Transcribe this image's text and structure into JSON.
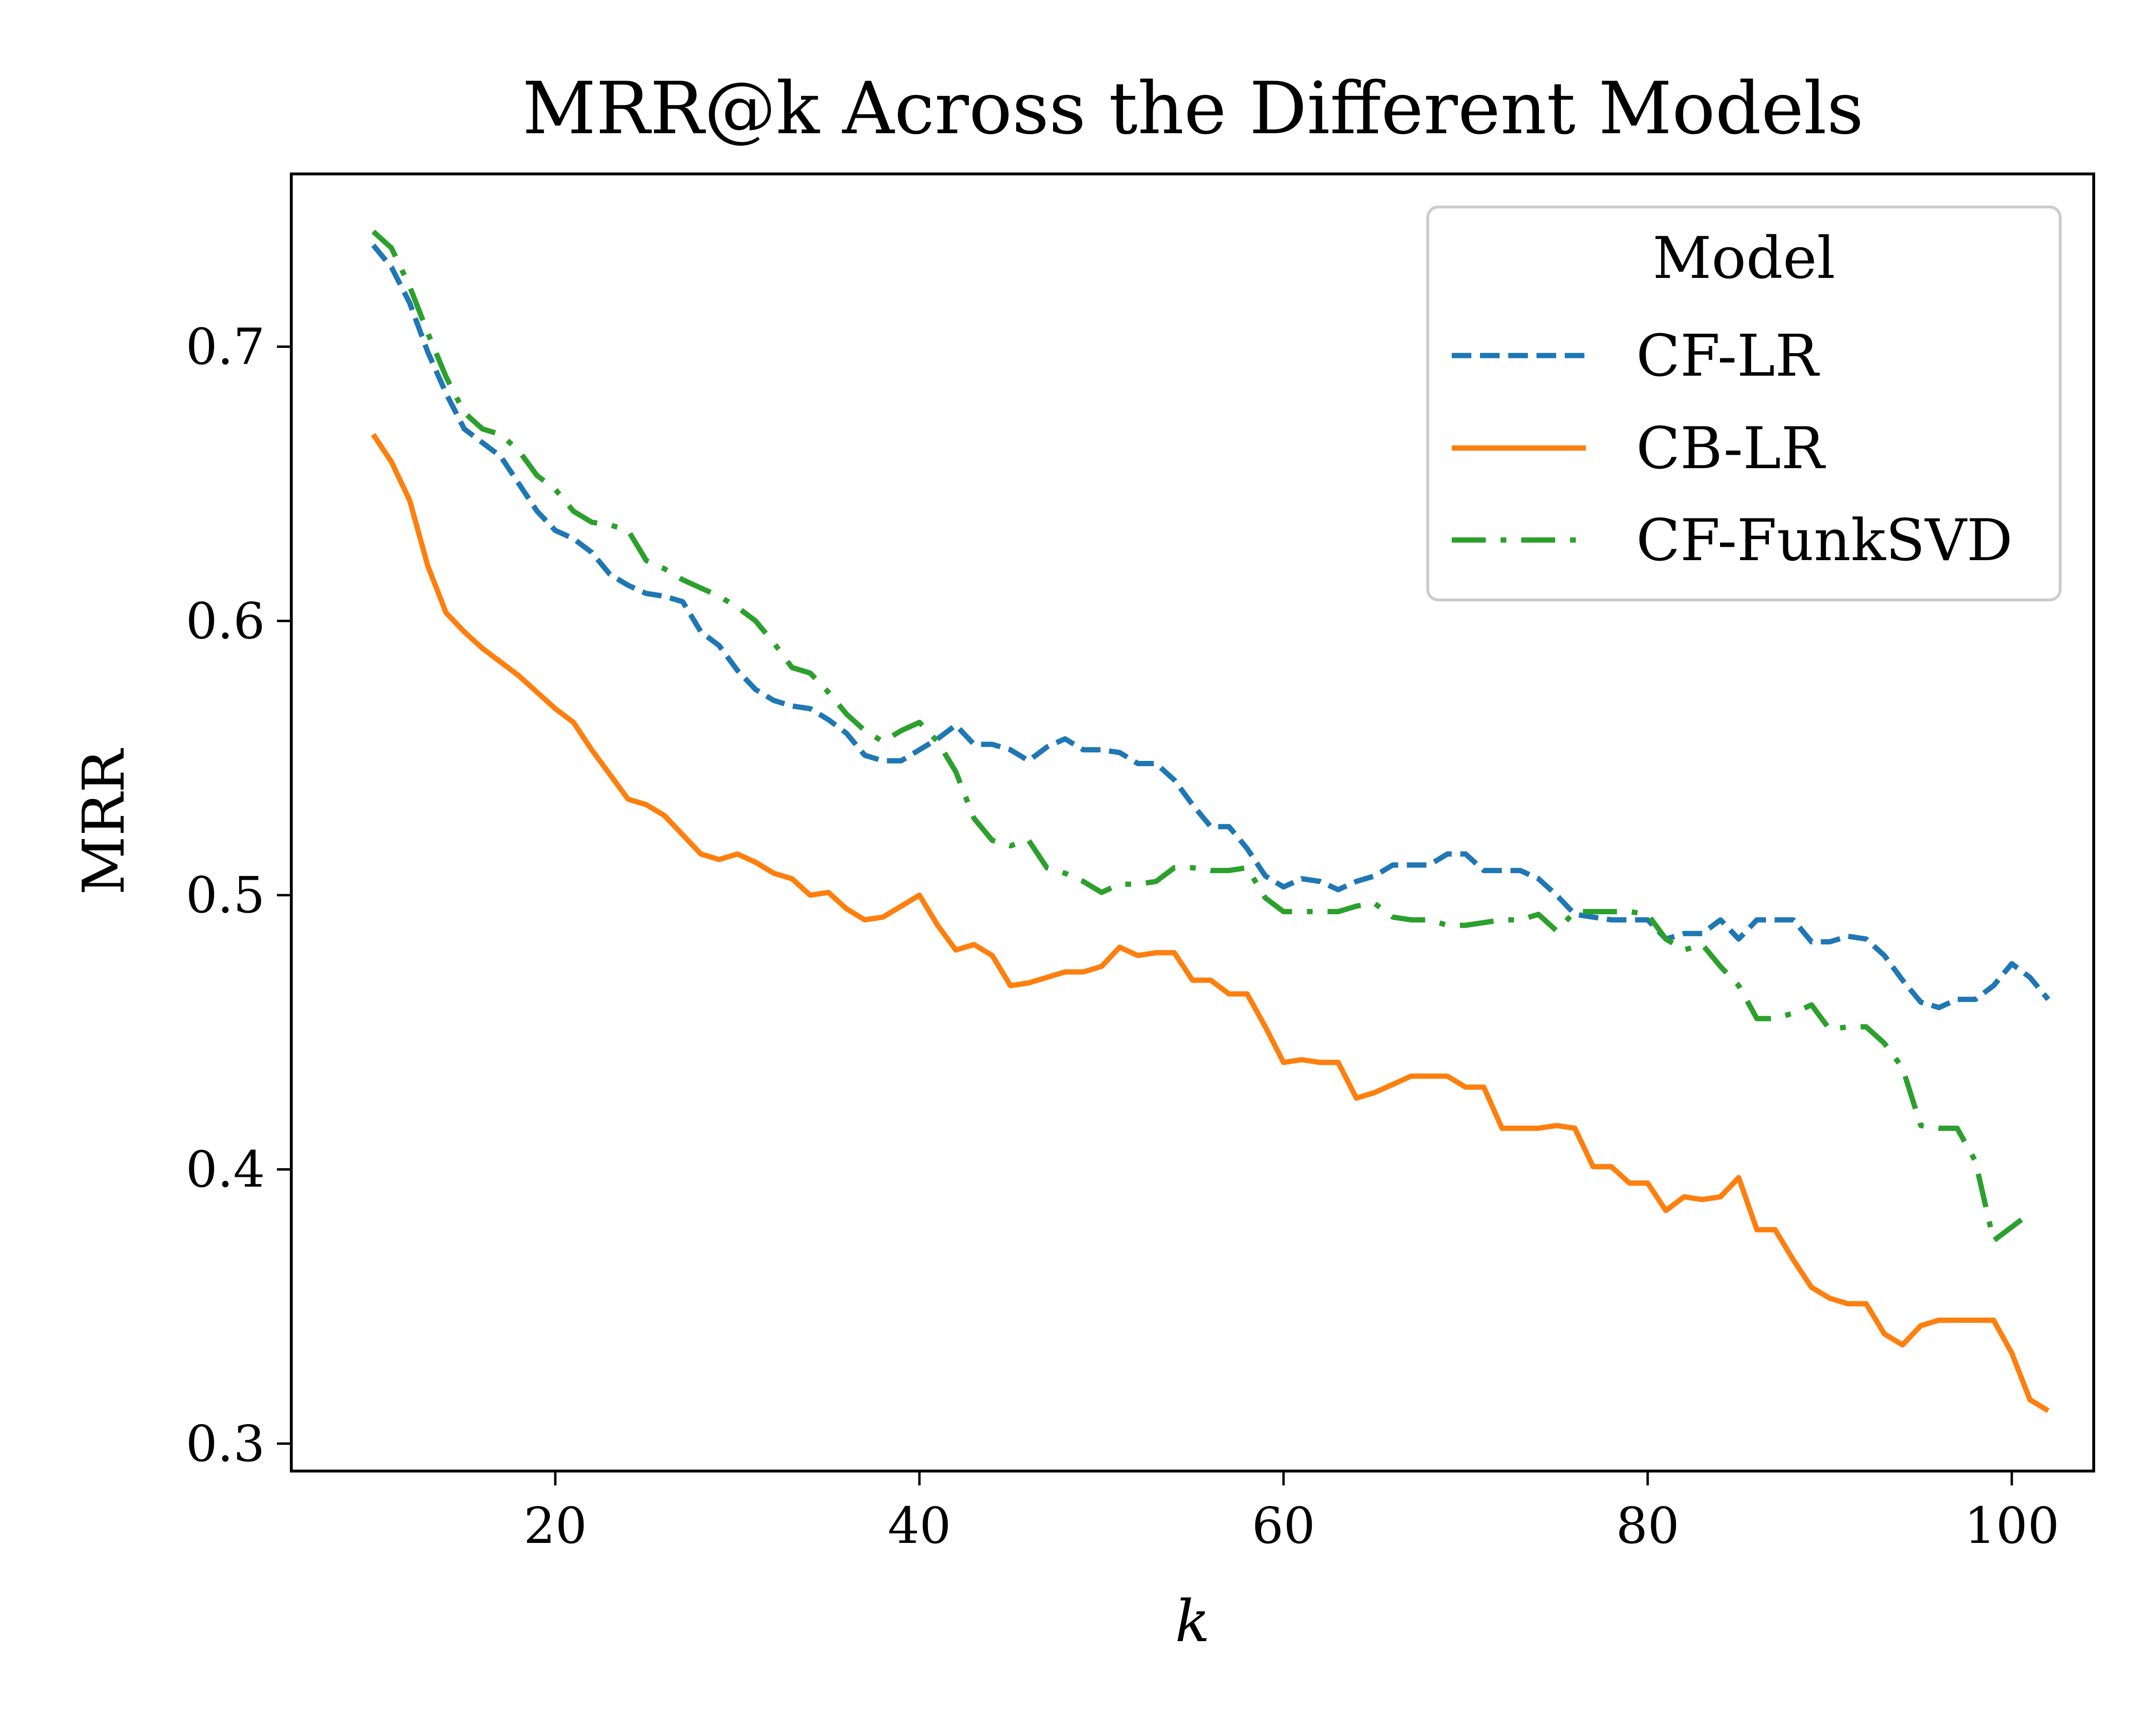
{
  "chart_data": {
    "type": "line",
    "title": "MRR@k Across the Different Models",
    "xlabel": "k",
    "ylabel": "MRR",
    "xlim": [
      5.5,
      104.5
    ],
    "ylim": [
      0.29,
      0.763
    ],
    "x_ticks": [
      20,
      40,
      60,
      80,
      100
    ],
    "x_tick_labels": [
      "20",
      "40",
      "60",
      "80",
      "100"
    ],
    "y_ticks": [
      0.3,
      0.4,
      0.5,
      0.6,
      0.7
    ],
    "y_tick_labels": [
      "0.3",
      "0.4",
      "0.5",
      "0.6",
      "0.7"
    ],
    "grid": false,
    "legend": {
      "title": "Model",
      "placement": "top-right"
    },
    "x_start": 10,
    "x_step": 1,
    "series": [
      {
        "name": "CF-LR",
        "color": "#1f77b4",
        "style": "dashed",
        "values": [
          0.737,
          0.729,
          0.716,
          0.698,
          0.683,
          0.67,
          0.665,
          0.66,
          0.65,
          0.64,
          0.633,
          0.63,
          0.625,
          0.617,
          0.613,
          0.61,
          0.609,
          0.607,
          0.596,
          0.591,
          0.582,
          0.575,
          0.571,
          0.569,
          0.568,
          0.564,
          0.559,
          0.551,
          0.549,
          0.549,
          0.553,
          0.557,
          0.562,
          0.555,
          0.555,
          0.553,
          0.549,
          0.554,
          0.557,
          0.553,
          0.553,
          0.552,
          0.548,
          0.548,
          0.542,
          0.533,
          0.525,
          0.525,
          0.517,
          0.507,
          0.503,
          0.506,
          0.505,
          0.502,
          0.505,
          0.507,
          0.511,
          0.511,
          0.511,
          0.515,
          0.515,
          0.509,
          0.509,
          0.509,
          0.506,
          0.5,
          0.493,
          0.492,
          0.491,
          0.491,
          0.491,
          0.484,
          0.486,
          0.486,
          0.491,
          0.484,
          0.491,
          0.491,
          0.491,
          0.483,
          0.483,
          0.485,
          0.484,
          0.478,
          0.469,
          0.461,
          0.459,
          0.462,
          0.462,
          0.467,
          0.475,
          0.47,
          0.462
        ]
      },
      {
        "name": "CB-LR",
        "color": "#ff7f0e",
        "style": "solid",
        "values": [
          0.668,
          0.658,
          0.644,
          0.62,
          0.603,
          0.596,
          0.59,
          0.585,
          0.58,
          0.574,
          0.568,
          0.563,
          0.553,
          0.544,
          0.535,
          0.533,
          0.529,
          0.522,
          0.515,
          0.513,
          0.515,
          0.512,
          0.508,
          0.506,
          0.5,
          0.501,
          0.495,
          0.491,
          0.492,
          0.496,
          0.5,
          0.489,
          0.48,
          0.482,
          0.478,
          0.467,
          0.468,
          0.47,
          0.472,
          0.472,
          0.474,
          0.481,
          0.478,
          0.479,
          0.479,
          0.469,
          0.469,
          0.464,
          0.464,
          0.452,
          0.439,
          0.44,
          0.439,
          0.439,
          0.426,
          0.428,
          0.431,
          0.434,
          0.434,
          0.434,
          0.43,
          0.43,
          0.415,
          0.415,
          0.415,
          0.416,
          0.415,
          0.401,
          0.401,
          0.395,
          0.395,
          0.385,
          0.39,
          0.389,
          0.39,
          0.397,
          0.378,
          0.378,
          0.367,
          0.357,
          0.353,
          0.351,
          0.351,
          0.34,
          0.336,
          0.343,
          0.345,
          0.345,
          0.345,
          0.345,
          0.333,
          0.316,
          0.312
        ]
      },
      {
        "name": "CF-FunkSVD",
        "color": "#2ca02c",
        "style": "dashdot",
        "values": [
          0.742,
          0.736,
          0.722,
          0.705,
          0.689,
          0.676,
          0.67,
          0.668,
          0.662,
          0.653,
          0.648,
          0.64,
          0.636,
          0.635,
          0.633,
          0.622,
          0.619,
          0.615,
          0.612,
          0.609,
          0.605,
          0.6,
          0.592,
          0.583,
          0.581,
          0.574,
          0.566,
          0.56,
          0.556,
          0.56,
          0.563,
          0.556,
          0.545,
          0.528,
          0.52,
          0.518,
          0.52,
          0.51,
          0.508,
          0.505,
          0.501,
          0.504,
          0.504,
          0.505,
          0.51,
          0.51,
          0.509,
          0.509,
          0.51,
          0.499,
          0.494,
          0.494,
          0.494,
          0.494,
          0.496,
          0.497,
          0.492,
          0.491,
          0.491,
          0.489,
          0.489,
          0.49,
          0.491,
          0.491,
          0.493,
          0.487,
          0.494,
          0.494,
          0.494,
          0.494,
          0.493,
          0.484,
          0.48,
          0.482,
          0.474,
          0.467,
          0.455,
          0.455,
          0.457,
          0.46,
          0.451,
          0.452,
          0.452,
          0.446,
          0.437,
          0.416,
          0.415,
          0.415,
          0.403,
          0.374,
          0.379,
          0.384
        ]
      }
    ]
  }
}
